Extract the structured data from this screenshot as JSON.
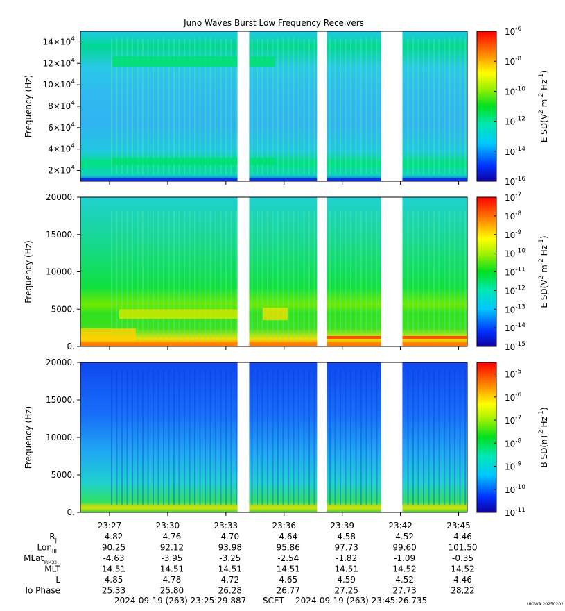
{
  "title": "Juno Waves Burst Low Frequency Receivers",
  "time_axis": {
    "ticks": [
      "23:27",
      "23:30",
      "23:33",
      "23:36",
      "23:39",
      "23:42",
      "23:45"
    ],
    "tick_minutes": [
      27,
      30,
      33,
      36,
      39,
      42,
      45
    ],
    "start_minute": 25.4988,
    "end_minute": 45.4456,
    "gaps": [
      [
        33.6,
        34.2
      ],
      [
        37.7,
        38.2
      ],
      [
        41.0,
        42.1
      ]
    ]
  },
  "ephemeris": {
    "rows": [
      {
        "label": "R",
        "sub": "J",
        "values": [
          "4.82",
          "4.76",
          "4.70",
          "4.64",
          "4.58",
          "4.52",
          "4.46"
        ]
      },
      {
        "label": "Lon",
        "sub": "III",
        "values": [
          "90.25",
          "92.12",
          "93.98",
          "95.86",
          "97.73",
          "99.60",
          "101.50"
        ]
      },
      {
        "label": "MLat",
        "sub": "JRM33",
        "values": [
          "-4.63",
          "-3.95",
          "-3.25",
          "-2.54",
          "-1.82",
          "-1.09",
          "-0.35"
        ]
      },
      {
        "label": "MLT",
        "sub": "",
        "values": [
          "14.51",
          "14.51",
          "14.51",
          "14.51",
          "14.51",
          "14.52",
          "14.52"
        ]
      },
      {
        "label": "L",
        "sub": "",
        "values": [
          "4.85",
          "4.78",
          "4.72",
          "4.65",
          "4.59",
          "4.52",
          "4.46"
        ]
      },
      {
        "label": "Io Phase",
        "sub": "",
        "values": [
          "25.33",
          "25.80",
          "26.28",
          "26.77",
          "27.25",
          "27.73",
          "28.22"
        ]
      }
    ]
  },
  "footer": {
    "start": "2024-09-19 (263) 23:25:29.887",
    "scet": "SCET",
    "end": "2024-09-19 (263) 23:45:26.735",
    "credit": "UIOWA 20250202"
  },
  "chart_data": [
    {
      "type": "heatmap",
      "panel": "top",
      "ylabel": "Frequency (Hz)",
      "ylim": [
        10000,
        150000
      ],
      "y_ticks": [
        {
          "mantissa": "2",
          "exp": "4",
          "value": 20000
        },
        {
          "mantissa": "4",
          "exp": "4",
          "value": 40000
        },
        {
          "mantissa": "6",
          "exp": "4",
          "value": 60000
        },
        {
          "mantissa": "8",
          "exp": "4",
          "value": 80000
        },
        {
          "mantissa": "10",
          "exp": "4",
          "value": 100000
        },
        {
          "mantissa": "12",
          "exp": "4",
          "value": 120000
        },
        {
          "mantissa": "14",
          "exp": "4",
          "value": 140000
        }
      ],
      "colorbar": {
        "label": "E SD",
        "unit_parts": [
          "V",
          "2",
          " m",
          "-2",
          " Hz",
          "-1"
        ],
        "log_min": -16,
        "log_max": -6,
        "ticks": [
          -6,
          -8,
          -10,
          -12,
          -14,
          -16
        ]
      }
    },
    {
      "type": "heatmap",
      "panel": "middle",
      "ylabel": "Frequency (Hz)",
      "ylim": [
        0,
        20000
      ],
      "y_ticks": [
        {
          "label": "0.",
          "value": 0
        },
        {
          "label": "5000.",
          "value": 5000
        },
        {
          "label": "10000.",
          "value": 10000
        },
        {
          "label": "15000.",
          "value": 15000
        },
        {
          "label": "20000.",
          "value": 20000
        }
      ],
      "colorbar": {
        "label": "E SD",
        "unit_parts": [
          "V",
          "2",
          " m",
          "-2",
          " Hz",
          "-1"
        ],
        "log_min": -15,
        "log_max": -7,
        "ticks": [
          -7,
          -8,
          -9,
          -10,
          -11,
          -12,
          -13,
          -14,
          -15
        ]
      }
    },
    {
      "type": "heatmap",
      "panel": "bottom",
      "ylabel": "Frequency (Hz)",
      "ylim": [
        0,
        20000
      ],
      "y_ticks": [
        {
          "label": "0.",
          "value": 0
        },
        {
          "label": "5000.",
          "value": 5000
        },
        {
          "label": "10000.",
          "value": 10000
        },
        {
          "label": "15000.",
          "value": 15000
        },
        {
          "label": "20000.",
          "value": 20000
        }
      ],
      "colorbar": {
        "label": "B SD",
        "unit_parts": [
          "nT",
          "2",
          " Hz",
          "-1"
        ],
        "log_min": -11,
        "log_max": -4.5,
        "ticks": [
          -5,
          -6,
          -7,
          -8,
          -9,
          -10,
          -11
        ]
      }
    }
  ]
}
